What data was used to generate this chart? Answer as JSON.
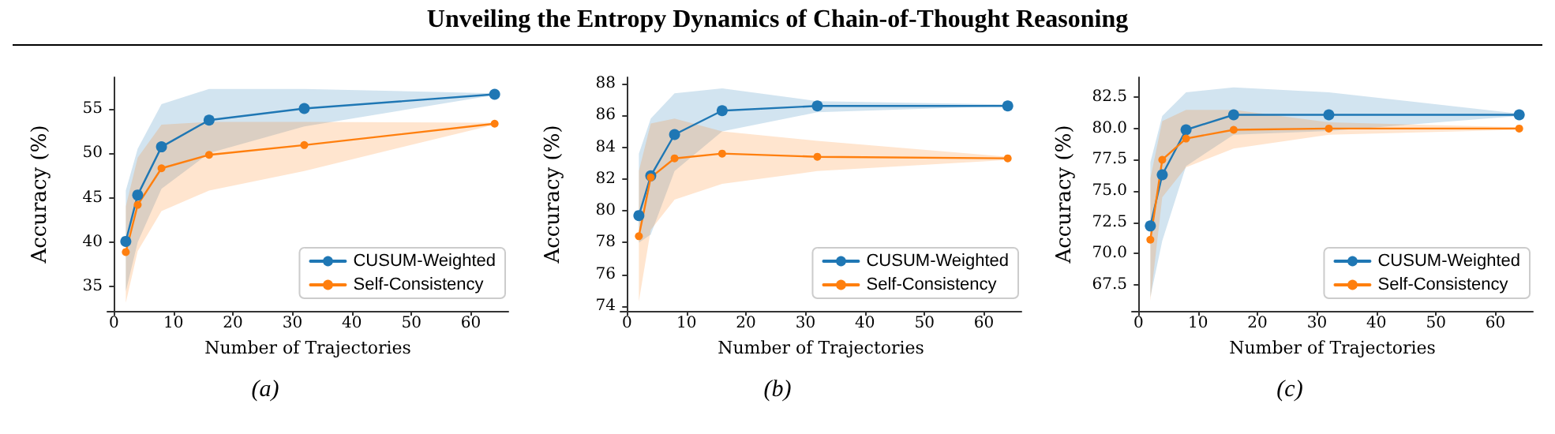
{
  "chart_data": [
    {
      "type": "line",
      "title": "Unveiling the Entropy Dynamics of Chain-of-Thought Reasoning",
      "subtitle": "(a)",
      "xlabel": "Number of Trajectories",
      "ylabel": "Accuracy (%)",
      "x": [
        2,
        4,
        8,
        16,
        32,
        64
      ],
      "xlim": [
        -1.1,
        66.3
      ],
      "xticks": [
        0,
        10,
        20,
        30,
        40,
        50,
        60
      ],
      "ylim": [
        32.3,
        58.5
      ],
      "yticks": [
        35,
        40,
        45,
        50,
        55
      ],
      "grid": false,
      "legend": "bottom right",
      "marker": "circle",
      "line_style": "solid",
      "series": [
        {
          "name": "CUSUM-Weighted",
          "color": "#1f77b4",
          "values": [
            40.1,
            45.3,
            50.7,
            53.7,
            55.0,
            56.6
          ],
          "lower": [
            34.5,
            40.0,
            46.0,
            50.0,
            53.0,
            56.5
          ],
          "upper": [
            45.8,
            50.5,
            55.5,
            57.2,
            57.2,
            56.7
          ]
        },
        {
          "name": "Self-Consistency",
          "color": "#ff7f0e",
          "values": [
            38.9,
            44.2,
            48.3,
            49.8,
            50.9,
            53.3
          ],
          "lower": [
            33.2,
            39.0,
            43.5,
            45.8,
            48.0,
            53.2
          ],
          "upper": [
            44.0,
            49.5,
            53.2,
            53.5,
            53.5,
            53.4
          ]
        }
      ]
    },
    {
      "type": "line",
      "subtitle": "(b)",
      "xlabel": "Number of Trajectories",
      "ylabel": "Accuracy (%)",
      "x": [
        2,
        4,
        8,
        16,
        32,
        64
      ],
      "xlim": [
        -1.1,
        66.3
      ],
      "xticks": [
        0,
        10,
        20,
        30,
        40,
        50,
        60
      ],
      "ylim": [
        73.7,
        88.4
      ],
      "yticks": [
        74,
        76,
        78,
        80,
        82,
        84,
        86,
        88
      ],
      "grid": false,
      "legend": "bottom right",
      "marker": "circle",
      "line_style": "solid",
      "series": [
        {
          "name": "CUSUM-Weighted",
          "color": "#1f77b4",
          "values": [
            79.7,
            82.2,
            84.8,
            86.3,
            86.6,
            86.6
          ],
          "lower": [
            78.0,
            78.5,
            82.5,
            85.0,
            86.2,
            86.6
          ],
          "upper": [
            83.6,
            85.8,
            87.4,
            87.7,
            86.9,
            86.7
          ]
        },
        {
          "name": "Self-Consistency",
          "color": "#ff7f0e",
          "values": [
            78.4,
            82.1,
            83.3,
            83.6,
            83.4,
            83.3
          ],
          "lower": [
            74.3,
            78.8,
            80.7,
            81.7,
            82.5,
            83.2
          ],
          "upper": [
            82.5,
            85.5,
            85.8,
            85.0,
            84.4,
            83.4
          ]
        }
      ]
    },
    {
      "type": "line",
      "subtitle": "(c)",
      "xlabel": "Number of Trajectories",
      "ylabel": "Accuracy (%)",
      "x": [
        2,
        4,
        8,
        16,
        32,
        64
      ],
      "xlim": [
        -1.1,
        66.3
      ],
      "xticks": [
        0,
        10,
        20,
        30,
        40,
        50,
        60
      ],
      "ylim": [
        65.4,
        84.1
      ],
      "yticks": [
        {
          "value": 67.5,
          "label": "67.5"
        },
        {
          "value": 70,
          "label": "70.0"
        },
        {
          "value": 72.5,
          "label": "72.5"
        },
        {
          "value": 75,
          "label": "75.0"
        },
        {
          "value": 77.5,
          "label": "77.5"
        },
        {
          "value": 80,
          "label": "80.0"
        },
        {
          "value": 82.5,
          "label": "82.5"
        }
      ],
      "grid": false,
      "legend": "bottom right",
      "marker": "circle",
      "line_style": "solid",
      "series": [
        {
          "name": "CUSUM-Weighted",
          "color": "#1f77b4",
          "values": [
            72.2,
            76.3,
            79.9,
            81.1,
            81.1,
            81.1
          ],
          "lower": [
            66.5,
            71.0,
            77.0,
            79.5,
            79.8,
            81.0
          ],
          "upper": [
            77.3,
            81.0,
            82.9,
            83.3,
            82.9,
            81.2
          ]
        },
        {
          "name": "Self-Consistency",
          "color": "#ff7f0e",
          "values": [
            71.1,
            77.5,
            79.2,
            79.9,
            80.0,
            80.0
          ],
          "lower": [
            66.2,
            74.5,
            76.9,
            78.4,
            79.5,
            79.9
          ],
          "upper": [
            76.0,
            80.6,
            81.5,
            81.5,
            80.5,
            80.1
          ]
        }
      ]
    }
  ]
}
